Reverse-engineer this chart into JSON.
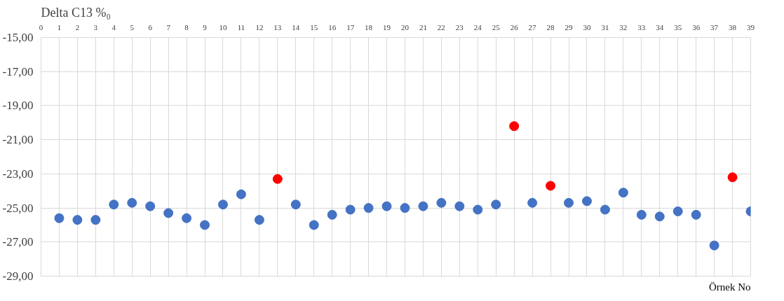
{
  "chart_data": {
    "type": "scatter",
    "ylabel": "Delta C13 %₀",
    "xlabel": "Örnek No",
    "xlim": [
      0,
      39
    ],
    "xticks": [
      0,
      1,
      2,
      3,
      4,
      5,
      6,
      7,
      8,
      9,
      10,
      11,
      12,
      13,
      14,
      15,
      16,
      17,
      18,
      19,
      20,
      21,
      22,
      23,
      24,
      25,
      26,
      27,
      28,
      29,
      30,
      31,
      32,
      33,
      34,
      35,
      36,
      37,
      38,
      39
    ],
    "ylim": [
      -29,
      -15
    ],
    "yticks": [
      {
        "value": -29,
        "label": "-29,00"
      },
      {
        "value": -27,
        "label": "-27,00"
      },
      {
        "value": -25,
        "label": "-25,00"
      },
      {
        "value": -23,
        "label": "-23,00"
      },
      {
        "value": -21,
        "label": "-21,00"
      },
      {
        "value": -19,
        "label": "-19,00"
      },
      {
        "value": -17,
        "label": "-17,00"
      },
      {
        "value": -15,
        "label": "-15,00"
      }
    ],
    "grid": true,
    "marker": "circle",
    "series": [
      {
        "color": "#4472c4",
        "x": [
          1,
          2,
          3,
          4,
          5,
          6,
          7,
          8,
          9,
          10,
          11,
          12,
          14,
          15,
          16,
          17,
          18,
          19,
          20,
          21,
          22,
          23,
          24,
          25,
          27,
          29,
          30,
          31,
          32,
          33,
          34,
          35,
          36,
          37,
          39
        ],
        "values": [
          -25.6,
          -25.7,
          -25.7,
          -24.8,
          -24.7,
          -24.9,
          -25.3,
          -25.6,
          -26.0,
          -24.8,
          -24.2,
          -25.7,
          -24.8,
          -26.0,
          -25.4,
          -25.1,
          -25.0,
          -24.9,
          -25.0,
          -24.9,
          -24.7,
          -24.9,
          -25.1,
          -24.8,
          -24.7,
          -24.7,
          -24.6,
          -25.1,
          -24.1,
          -25.4,
          -25.5,
          -25.2,
          -25.4,
          -27.2,
          -25.2
        ]
      },
      {
        "color": "#ff0000",
        "x": [
          13,
          26,
          28,
          38
        ],
        "values": [
          -23.3,
          -20.2,
          -23.7,
          -23.2
        ]
      }
    ]
  }
}
